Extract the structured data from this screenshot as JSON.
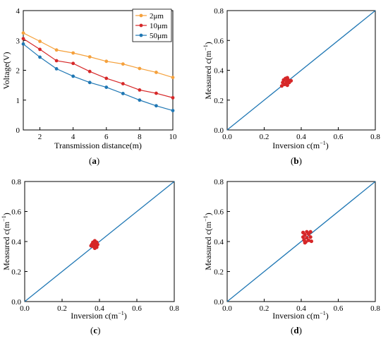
{
  "figure": {
    "panels": [
      "a",
      "b",
      "c",
      "d"
    ]
  },
  "chart_data": [
    {
      "id": "a",
      "type": "line",
      "caption_open": "(",
      "caption_letter": "a",
      "caption_close": ")",
      "xlabel": "Transmission distance(m)",
      "ylabel": "Voltage(V)",
      "xlim": [
        1,
        10
      ],
      "ylim": [
        0,
        4
      ],
      "xticks": [
        2,
        4,
        6,
        8,
        10
      ],
      "yticks": [
        0,
        1,
        2,
        3,
        4
      ],
      "grid": false,
      "legend": "top-right",
      "x": [
        1,
        2,
        3,
        4,
        5,
        6,
        7,
        8,
        9,
        10
      ],
      "series": [
        {
          "name": "2μm",
          "color": "#f5a13c",
          "values": [
            3.25,
            2.97,
            2.68,
            2.58,
            2.45,
            2.3,
            2.21,
            2.06,
            1.93,
            1.76
          ]
        },
        {
          "name": "10μm",
          "color": "#d62728",
          "values": [
            3.06,
            2.7,
            2.32,
            2.23,
            1.96,
            1.73,
            1.55,
            1.34,
            1.23,
            1.08
          ]
        },
        {
          "name": "50μm",
          "color": "#1f77b4",
          "values": [
            2.88,
            2.44,
            2.05,
            1.8,
            1.59,
            1.43,
            1.22,
            1.0,
            0.81,
            0.65
          ]
        }
      ]
    },
    {
      "id": "b",
      "type": "scatter",
      "caption_open": "(",
      "caption_letter": "b",
      "caption_close": ")",
      "xlabel_main": "Inversion  c(m",
      "xlabel_sup": "−1",
      "xlabel_end": ")",
      "ylabel_main": "Measured  c(m",
      "ylabel_sup": "−1",
      "ylabel_end": ")",
      "xlim": [
        0,
        0.8
      ],
      "ylim": [
        0,
        0.8
      ],
      "xticks": [
        "0.0",
        "0.2",
        "0.4",
        "0.6",
        "0.8"
      ],
      "yticks": [
        "0.0",
        "0.2",
        "0.4",
        "0.6",
        "0.8"
      ],
      "grid": false,
      "line": {
        "color": "#1f77b4",
        "from": [
          0,
          0
        ],
        "to": [
          0.8,
          0.8
        ]
      },
      "point_color": "#d62728",
      "points": [
        [
          0.305,
          0.335
        ],
        [
          0.315,
          0.345
        ],
        [
          0.325,
          0.35
        ],
        [
          0.33,
          0.335
        ],
        [
          0.32,
          0.322
        ],
        [
          0.3,
          0.318
        ],
        [
          0.335,
          0.318
        ],
        [
          0.345,
          0.33
        ],
        [
          0.31,
          0.305
        ],
        [
          0.325,
          0.3
        ],
        [
          0.295,
          0.295
        ]
      ]
    },
    {
      "id": "c",
      "type": "scatter",
      "caption_open": "(",
      "caption_letter": "c",
      "caption_close": ")",
      "xlabel_main": "Inversion  c(m",
      "xlabel_sup": "−1",
      "xlabel_end": ")",
      "ylabel_main": "Measured  c(m",
      "ylabel_sup": "−1",
      "ylabel_end": ")",
      "xlim": [
        0,
        0.8
      ],
      "ylim": [
        0,
        0.8
      ],
      "xticks": [
        "0.0",
        "0.2",
        "0.4",
        "0.6",
        "0.8"
      ],
      "yticks": [
        "0.0",
        "0.2",
        "0.4",
        "0.6",
        "0.8"
      ],
      "grid": false,
      "line": {
        "color": "#1f77b4",
        "from": [
          0,
          0
        ],
        "to": [
          0.8,
          0.8
        ]
      },
      "point_color": "#d62728",
      "points": [
        [
          0.365,
          0.395
        ],
        [
          0.375,
          0.405
        ],
        [
          0.385,
          0.395
        ],
        [
          0.36,
          0.382
        ],
        [
          0.375,
          0.385
        ],
        [
          0.39,
          0.38
        ],
        [
          0.365,
          0.368
        ],
        [
          0.38,
          0.37
        ],
        [
          0.355,
          0.372
        ],
        [
          0.385,
          0.362
        ],
        [
          0.375,
          0.356
        ]
      ]
    },
    {
      "id": "d",
      "type": "scatter",
      "caption_open": "(",
      "caption_letter": "d",
      "caption_close": ")",
      "xlabel_main": "Inversion  c(m",
      "xlabel_sup": "−1",
      "xlabel_end": ")",
      "ylabel_main": "Measured  c(m",
      "ylabel_sup": "−1",
      "ylabel_end": ")",
      "xlim": [
        0,
        0.8
      ],
      "ylim": [
        0,
        0.8
      ],
      "xticks": [
        "0.0",
        "0.2",
        "0.4",
        "0.6",
        "0.8"
      ],
      "yticks": [
        "0.0",
        "0.2",
        "0.4",
        "0.6",
        "0.8"
      ],
      "grid": false,
      "line": {
        "color": "#1f77b4",
        "from": [
          0,
          0
        ],
        "to": [
          0.8,
          0.8
        ]
      },
      "point_color": "#d62728",
      "points": [
        [
          0.41,
          0.46
        ],
        [
          0.43,
          0.465
        ],
        [
          0.45,
          0.465
        ],
        [
          0.42,
          0.445
        ],
        [
          0.44,
          0.45
        ],
        [
          0.41,
          0.43
        ],
        [
          0.43,
          0.425
        ],
        [
          0.45,
          0.43
        ],
        [
          0.415,
          0.41
        ],
        [
          0.44,
          0.408
        ],
        [
          0.425,
          0.398
        ],
        [
          0.455,
          0.402
        ],
        [
          0.42,
          0.392
        ]
      ]
    }
  ]
}
